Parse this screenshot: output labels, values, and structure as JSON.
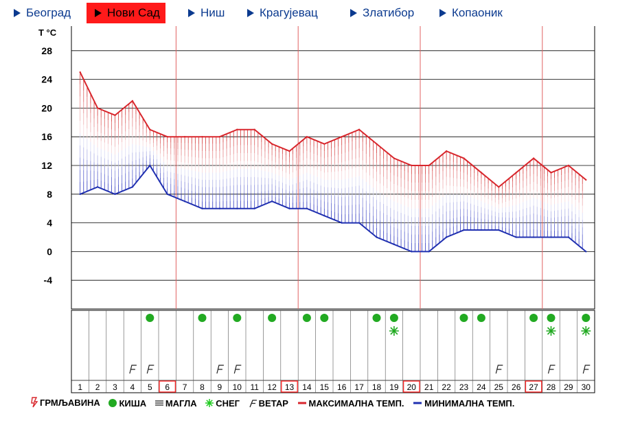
{
  "tabs": [
    {
      "label": "Београд",
      "active": false
    },
    {
      "label": "Нови Сад",
      "active": true
    },
    {
      "label": "Ниш",
      "active": false
    },
    {
      "label": "Крагујевац",
      "active": false
    },
    {
      "label": "Златибор",
      "active": false
    },
    {
      "label": "Копаоник",
      "active": false
    }
  ],
  "colors": {
    "max": "#d8262c",
    "min": "#1f2fb0",
    "rain": "#22aa22",
    "snow": "#22aa22",
    "tab_active": "#ff1a1a",
    "tab_text": "#0b3a8f"
  },
  "legend": {
    "thunder": "ГРМЉАВИНА",
    "rain": "КИША",
    "fog": "МАГЛА",
    "snow": "СНЕГ",
    "wind": "ВЕТАР",
    "max": "МАКСИМАЛНА ТЕМП.",
    "min": "МИНИМАЛНА ТЕМП."
  },
  "chart_data": {
    "type": "line",
    "ylabel": "T °C",
    "ylim": [
      -8,
      32
    ],
    "yticks": [
      -4,
      0,
      4,
      8,
      12,
      16,
      20,
      24,
      28
    ],
    "grid": true,
    "x": [
      1,
      2,
      3,
      4,
      5,
      6,
      7,
      8,
      9,
      10,
      11,
      12,
      13,
      14,
      15,
      16,
      17,
      18,
      19,
      20,
      21,
      22,
      23,
      24,
      25,
      26,
      27,
      28,
      29,
      30
    ],
    "series": [
      {
        "name": "МАКСИМАЛНА ТЕМП.",
        "values": [
          25,
          20,
          19,
          21,
          17,
          16,
          16,
          16,
          16,
          17,
          17,
          15,
          14,
          16,
          15,
          16,
          17,
          15,
          13,
          12,
          12,
          14,
          13,
          11,
          9,
          11,
          13,
          11,
          12,
          10
        ]
      },
      {
        "name": "МИНИМАЛНА ТЕМП.",
        "values": [
          8,
          9,
          8,
          9,
          12,
          8,
          7,
          6,
          6,
          6,
          6,
          7,
          6,
          6,
          5,
          4,
          4,
          2,
          1,
          0,
          0,
          2,
          3,
          3,
          3,
          2,
          2,
          2,
          2,
          0
        ]
      }
    ],
    "week_markers": [
      6,
      13,
      20,
      27
    ],
    "rain_days": [
      5,
      8,
      10,
      12,
      14,
      15,
      18,
      19,
      23,
      24,
      27,
      28,
      30
    ],
    "snow_days": [
      19,
      28,
      30
    ],
    "wind_days": [
      4,
      5,
      9,
      10,
      25,
      28,
      30
    ]
  }
}
